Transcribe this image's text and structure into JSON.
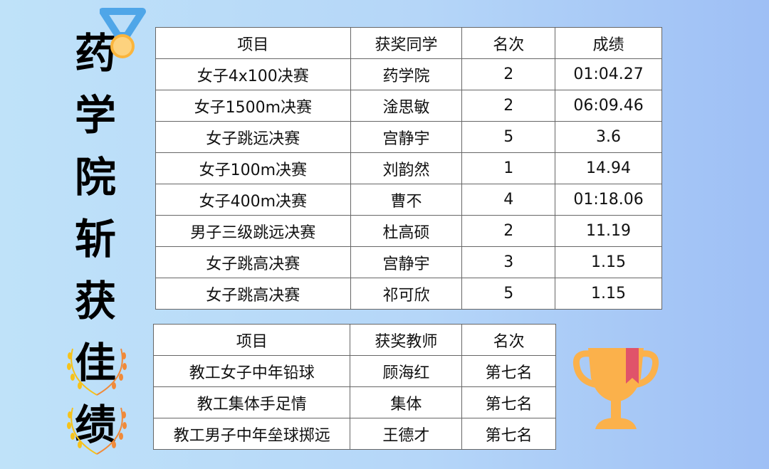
{
  "title": [
    "药",
    "学",
    "院",
    "斩",
    "获",
    "佳",
    "绩"
  ],
  "students": {
    "headers": [
      "项目",
      "获奖同学",
      "名次",
      "成绩"
    ],
    "rows": [
      [
        "女子4x100决赛",
        "药学院",
        "2",
        "01:04.27"
      ],
      [
        "女子1500m决赛",
        "淦思敏",
        "2",
        "06:09.46"
      ],
      [
        "女子跳远决赛",
        "宫静宇",
        "5",
        "3.6"
      ],
      [
        "女子100m决赛",
        "刘韵然",
        "1",
        "14.94"
      ],
      [
        "女子400m决赛",
        "曹不",
        "4",
        "01:18.06"
      ],
      [
        "男子三级跳远决赛",
        "杜高硕",
        "2",
        "11.19"
      ],
      [
        "女子跳高决赛",
        "宫静宇",
        "3",
        "1.15"
      ],
      [
        "女子跳高决赛",
        "祁可欣",
        "5",
        "1.15"
      ]
    ]
  },
  "teachers": {
    "headers": [
      "项目",
      "获奖教师",
      "名次"
    ],
    "rows": [
      [
        "教工女子中年铅球",
        "顾海红",
        "第七名"
      ],
      [
        "教工集体手足情",
        "集体",
        "第七名"
      ],
      [
        "教工男子中年垒球掷远",
        "王德才",
        "第七名"
      ]
    ]
  },
  "colors": {
    "medal_ribbon": "#4fa6e8",
    "medal": "#fbb53c",
    "trophy": "#fbb14b",
    "trophy_ribbon": "#e0536a",
    "wreath_left": "#f6c21a",
    "wreath_right": "#f08a3a"
  }
}
